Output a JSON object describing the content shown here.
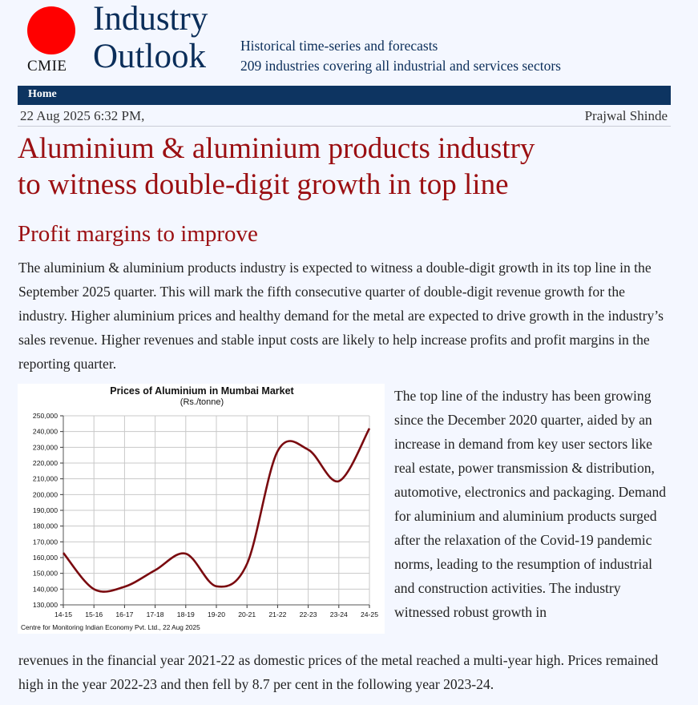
{
  "header": {
    "logo_text": "CMIE",
    "title_line1": "Industry",
    "title_line2": "Outlook",
    "tagline_line1": "Historical time-series and forecasts",
    "tagline_line2": "209 industries covering all industrial and services sectors"
  },
  "nav": {
    "home": "Home"
  },
  "meta": {
    "datetime": "22 Aug 2025 6:32 PM,",
    "author": "Prajwal Shinde"
  },
  "article": {
    "headline_line1": "Aluminium & aluminium products industry",
    "headline_line2": "to witness double-digit growth in top line",
    "subhead": "Profit margins to improve",
    "para1": "The aluminium & aluminium products industry is expected to witness a double-digit growth in its top line in the September 2025 quarter. This will mark the fifth consecutive quarter of double-digit revenue growth for the industry. Higher aluminium prices and healthy demand for the metal are expected to drive growth in the industry’s sales revenue. Higher revenues and stable input costs are likely to help increase profits and profit margins in the reporting quarter.",
    "para2": "The top line of the industry has been growing since the December 2020 quarter, aided by an increase in demand from key user sectors like real estate, power transmission & distribution, automotive, electronics and packaging. Demand for aluminium and aluminium products surged after the relaxation of the Covid-19 pandemic norms, leading to the resumption of industrial and construction activities. The industry witnessed robust growth in",
    "para3": "revenues in the financial year 2021-22 as domestic prices of the metal reached a multi-year high. Prices remained high in the year 2022-23 and then fell by 8.7 per cent in the following year 2023-24."
  },
  "colors": {
    "line": "#7a0a0f",
    "headline": "#9b0f12",
    "brand": "#0b2e5a",
    "nav": "#0d3461",
    "logo": "#ff0000"
  },
  "chart_data": {
    "type": "line",
    "title": "Prices of Aluminium in Mumbai Market",
    "subtitle": "(Rs./tonne)",
    "categories": [
      "14-15",
      "15-16",
      "16-17",
      "17-18",
      "18-19",
      "19-20",
      "20-21",
      "21-22",
      "22-23",
      "23-24",
      "24-25"
    ],
    "values": [
      163000,
      140000,
      141500,
      152000,
      162500,
      141800,
      156000,
      227500,
      228500,
      208500,
      242000
    ],
    "ylim": [
      130000,
      250000
    ],
    "yticks": [
      130000,
      140000,
      150000,
      160000,
      170000,
      180000,
      190000,
      200000,
      210000,
      220000,
      230000,
      240000,
      250000
    ],
    "ytick_labels": [
      "130,000",
      "140,000",
      "150,000",
      "160,000",
      "170,000",
      "180,000",
      "190,000",
      "200,000",
      "210,000",
      "220,000",
      "230,000",
      "240,000",
      "250,000"
    ],
    "grid": true,
    "source": "Centre for Monitoring Indian Economy Pvt. Ltd., 22 Aug 2025"
  }
}
